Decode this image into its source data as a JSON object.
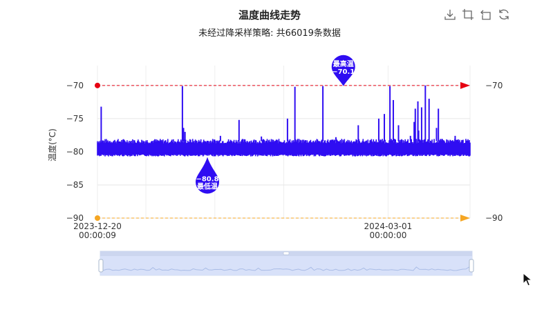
{
  "toolbox": {
    "icons": [
      "download-icon",
      "zoom-select-icon",
      "zoom-reset-icon",
      "refresh-icon"
    ]
  },
  "chart_data": {
    "type": "line",
    "title": "温度曲线走势",
    "subtitle": "未经过降采样策略: 共66019条数据",
    "ylabel": "温度(°C)",
    "ylim": [
      -90,
      -67
    ],
    "yticks": [
      -90,
      -85,
      -80,
      -75,
      -70
    ],
    "xlabels": [
      {
        "line1": "2023-12-20",
        "line2": "00:00:09",
        "pos": 0
      },
      {
        "line1": "2024-03-01",
        "line2": "00:00:00",
        "pos": 0.78
      }
    ],
    "series_color": "#2f0df2",
    "baseline": {
      "low": -80.4,
      "high": -78.4
    },
    "spikes_up": [
      [
        0.01,
        -73.2
      ],
      [
        0.13,
        -78.3
      ],
      [
        0.228,
        -70.1
      ],
      [
        0.231,
        -76.4
      ],
      [
        0.235,
        -77.0
      ],
      [
        0.38,
        -75.2
      ],
      [
        0.51,
        -75.0
      ],
      [
        0.53,
        -70.2
      ],
      [
        0.7,
        -76.0
      ],
      [
        0.605,
        -70.1
      ],
      [
        0.755,
        -75.0
      ],
      [
        0.77,
        -74.3
      ],
      [
        0.785,
        -70.1
      ],
      [
        0.794,
        -72.2
      ],
      [
        0.808,
        -76.0
      ],
      [
        0.84,
        -77.6
      ],
      [
        0.85,
        -75.5
      ],
      [
        0.853,
        -73.5
      ],
      [
        0.86,
        -72.4
      ],
      [
        0.862,
        -76.8
      ],
      [
        0.87,
        -73.3
      ],
      [
        0.88,
        -70.0
      ],
      [
        0.89,
        -72.0
      ],
      [
        0.91,
        -76.4
      ],
      [
        0.915,
        -73.5
      ],
      [
        0.96,
        -77.6
      ],
      [
        0.33,
        -77.6
      ],
      [
        0.44,
        -77.7
      ],
      [
        0.64,
        -77.8
      ]
    ],
    "max_point": {
      "label": "最高温",
      "value": -70.1,
      "pos": 0.66
    },
    "min_point": {
      "label": "最低温",
      "value": -80.8,
      "pos": 0.295
    },
    "markline_high": {
      "value": -70,
      "label": "-70",
      "color": "#e60012"
    },
    "markline_low": {
      "value": -90,
      "label": "-90",
      "color": "#f5a623"
    }
  }
}
